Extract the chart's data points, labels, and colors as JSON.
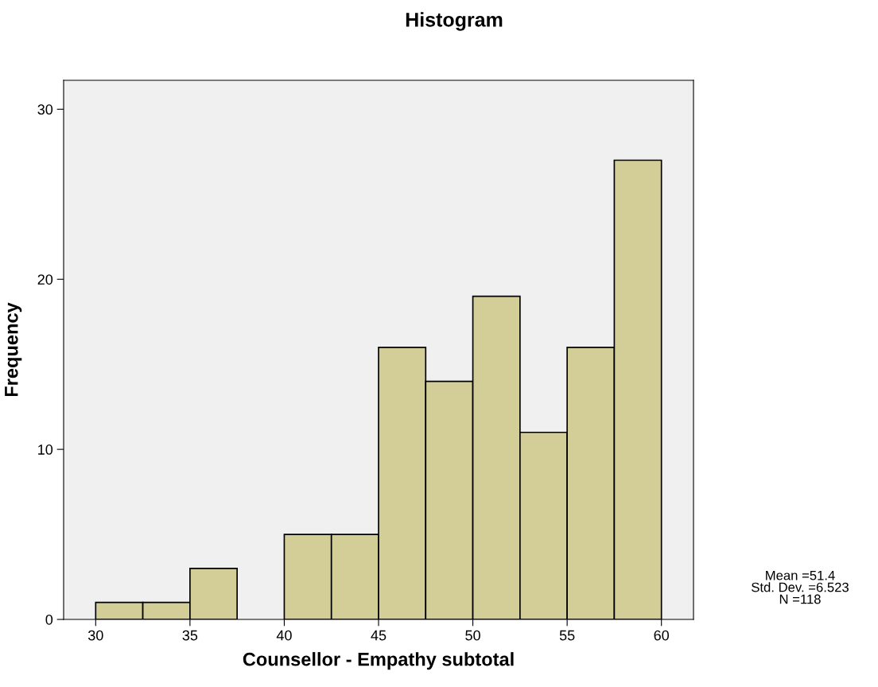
{
  "chart_data": {
    "type": "histogram",
    "title": "Histogram",
    "xlabel": "Counsellor - Empathy subtotal",
    "ylabel": "Frequency",
    "bins": [
      30,
      32.5,
      35,
      37.5,
      40,
      42.5,
      45,
      47.5,
      50,
      52.5,
      55,
      57.5,
      60
    ],
    "values": [
      1,
      1,
      3,
      0,
      5,
      5,
      16,
      14,
      19,
      11,
      16,
      27
    ],
    "color": "#d3ce97",
    "xlim": [
      28.3,
      61.7
    ],
    "xticks": [
      30,
      35,
      40,
      45,
      50,
      55,
      60
    ],
    "ylim": [
      0,
      31.7
    ],
    "yticks": [
      0,
      10,
      20,
      30
    ],
    "grid": false,
    "annotations": [
      "Mean =51.4\nStd. Dev. =6.523\nN =118"
    ]
  }
}
